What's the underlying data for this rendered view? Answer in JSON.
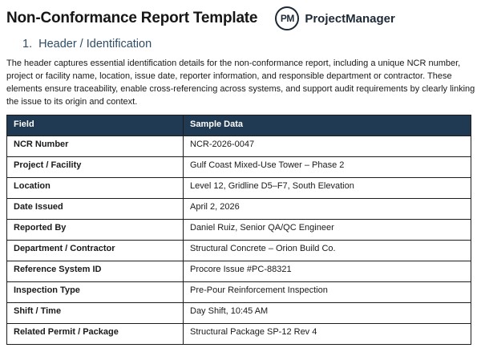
{
  "header": {
    "title": "Non-Conformance Report Template",
    "logo_monogram": "PM",
    "brand": "ProjectManager"
  },
  "section": {
    "number": "1.",
    "title": "Header / Identification"
  },
  "intro": "The header captures essential identification details for the non-conformance report, including a unique NCR number, project or facility name, location, issue date, reporter information, and responsible department or contractor. These elements ensure traceability, enable cross-referencing across systems, and support audit requirements by clearly linking the issue to its origin and context.",
  "table": {
    "headers": [
      "Field",
      "Sample Data"
    ],
    "rows": [
      {
        "field": "NCR Number",
        "value": "NCR-2026-0047"
      },
      {
        "field": "Project / Facility",
        "value": "Gulf Coast Mixed-Use Tower – Phase 2"
      },
      {
        "field": "Location",
        "value": "Level 12, Gridline D5–F7, South Elevation"
      },
      {
        "field": "Date Issued",
        "value": "April 2, 2026"
      },
      {
        "field": "Reported By",
        "value": "Daniel Ruiz, Senior QA/QC Engineer"
      },
      {
        "field": "Department / Contractor",
        "value": "Structural Concrete – Orion Build Co."
      },
      {
        "field": "Reference System ID",
        "value": "Procore Issue #PC-88321"
      },
      {
        "field": "Inspection Type",
        "value": "Pre-Pour Reinforcement Inspection"
      },
      {
        "field": "Shift / Time",
        "value": "Day Shift, 10:45 AM"
      },
      {
        "field": "Related Permit / Package",
        "value": "Structural Package SP-12 Rev 4"
      }
    ]
  },
  "colors": {
    "table_header_bg": "#1f3a52",
    "table_header_text": "#ffffff",
    "section_heading": "#2e4d66",
    "title_text": "#161616",
    "brand_navy": "#1e2936",
    "border": "#1c1c1c"
  }
}
